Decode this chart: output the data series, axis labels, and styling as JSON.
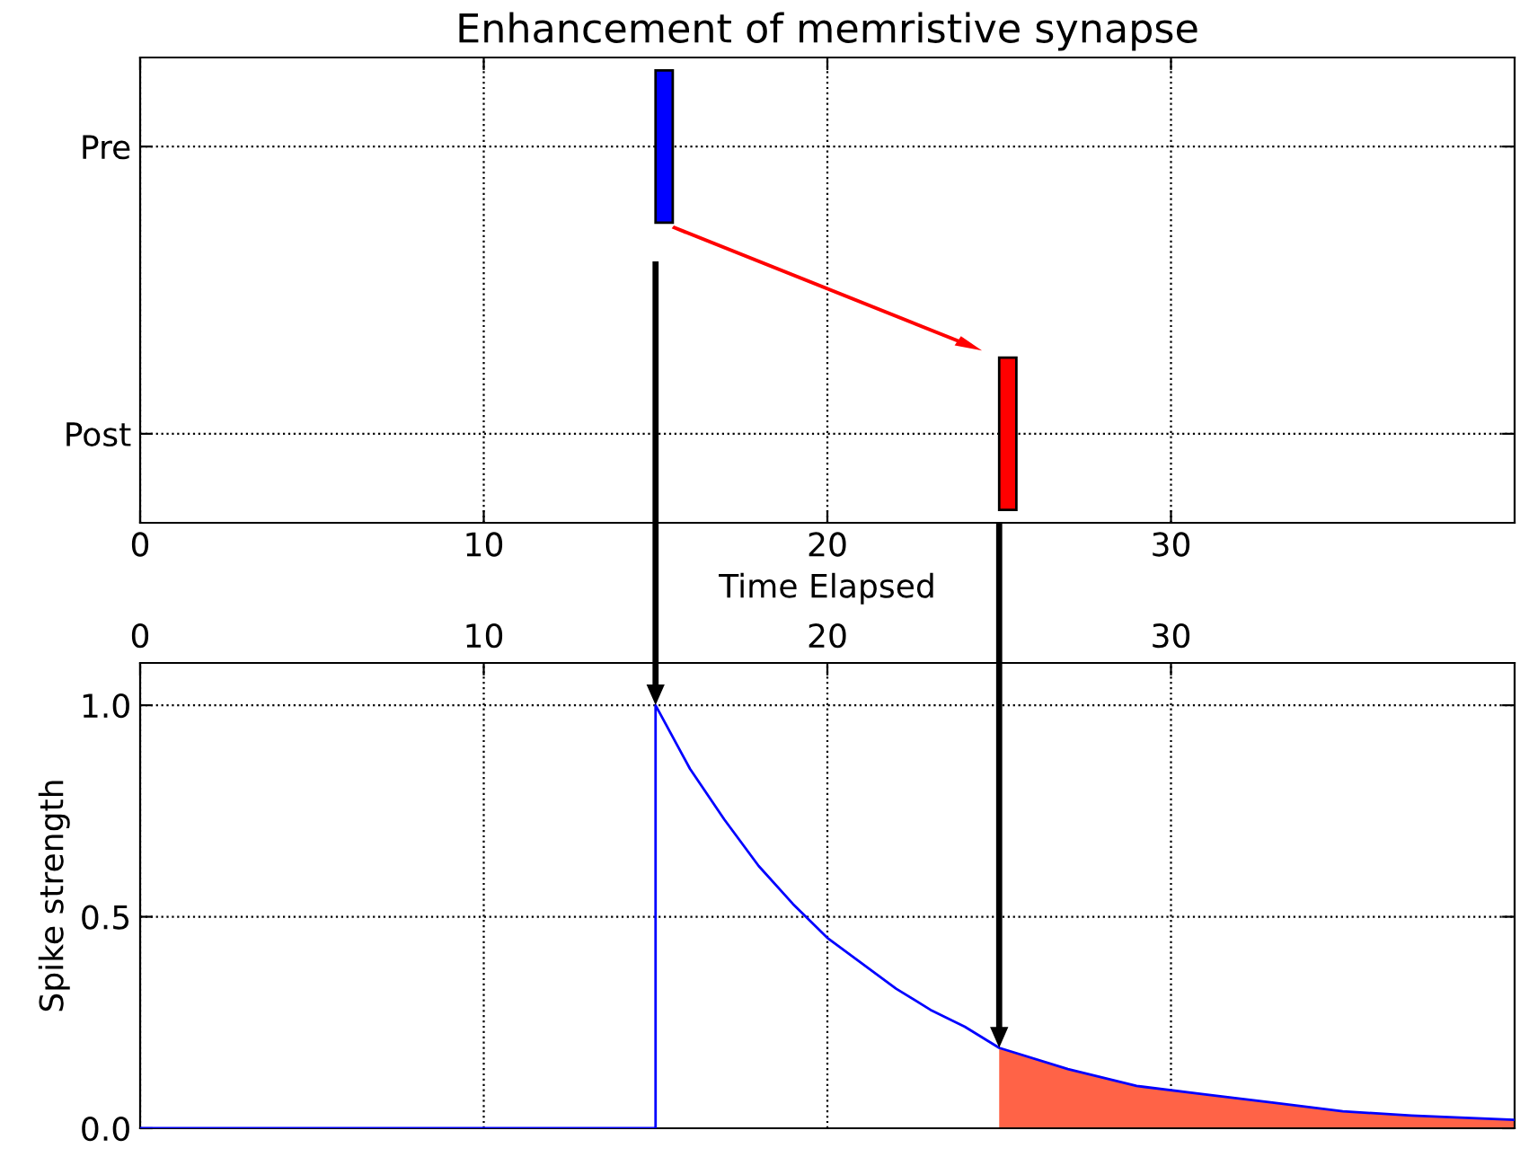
{
  "chart_data": [
    {
      "type": "bar",
      "orientation": "horizontal",
      "title": "Enhancement of memristive synapse",
      "xlabel": "Time Elapsed",
      "xlim": [
        0,
        40
      ],
      "xticks": [
        0,
        10,
        20,
        30
      ],
      "grid": true,
      "categories": [
        "Pre",
        "Post"
      ],
      "base": [
        15,
        25
      ],
      "values": [
        0.5,
        0.5
      ],
      "colors": [
        "#0000ff",
        "#ff0000"
      ]
    },
    {
      "type": "line",
      "ylabel": "Spike strength",
      "xlim": [
        0,
        40
      ],
      "xticks": [
        0,
        10,
        20,
        30
      ],
      "ylim": [
        0,
        1.1
      ],
      "yticks": [
        {
          "value": 0,
          "label": "0.0"
        },
        0.5,
        {
          "value": 1,
          "label": "1.0"
        }
      ],
      "grid": true,
      "series": [
        {
          "color": "#0000ff",
          "x": [
            0,
            15,
            15,
            16,
            17,
            18,
            19,
            20,
            21,
            22,
            23,
            24,
            25,
            27,
            29,
            31,
            33,
            35,
            37,
            40
          ],
          "values": [
            0,
            0,
            1,
            0.85,
            0.73,
            0.62,
            0.53,
            0.45,
            0.39,
            0.33,
            0.28,
            0.24,
            0.19,
            0.14,
            0.1,
            0.08,
            0.06,
            0.04,
            0.03,
            0.02
          ]
        },
        {
          "type": "area",
          "color": "#ff6347",
          "x": [
            25,
            27,
            29,
            31,
            33,
            35,
            37,
            40
          ],
          "values": [
            0.19,
            0.14,
            0.1,
            0.08,
            0.06,
            0.04,
            0.03,
            0.02
          ]
        }
      ]
    }
  ]
}
